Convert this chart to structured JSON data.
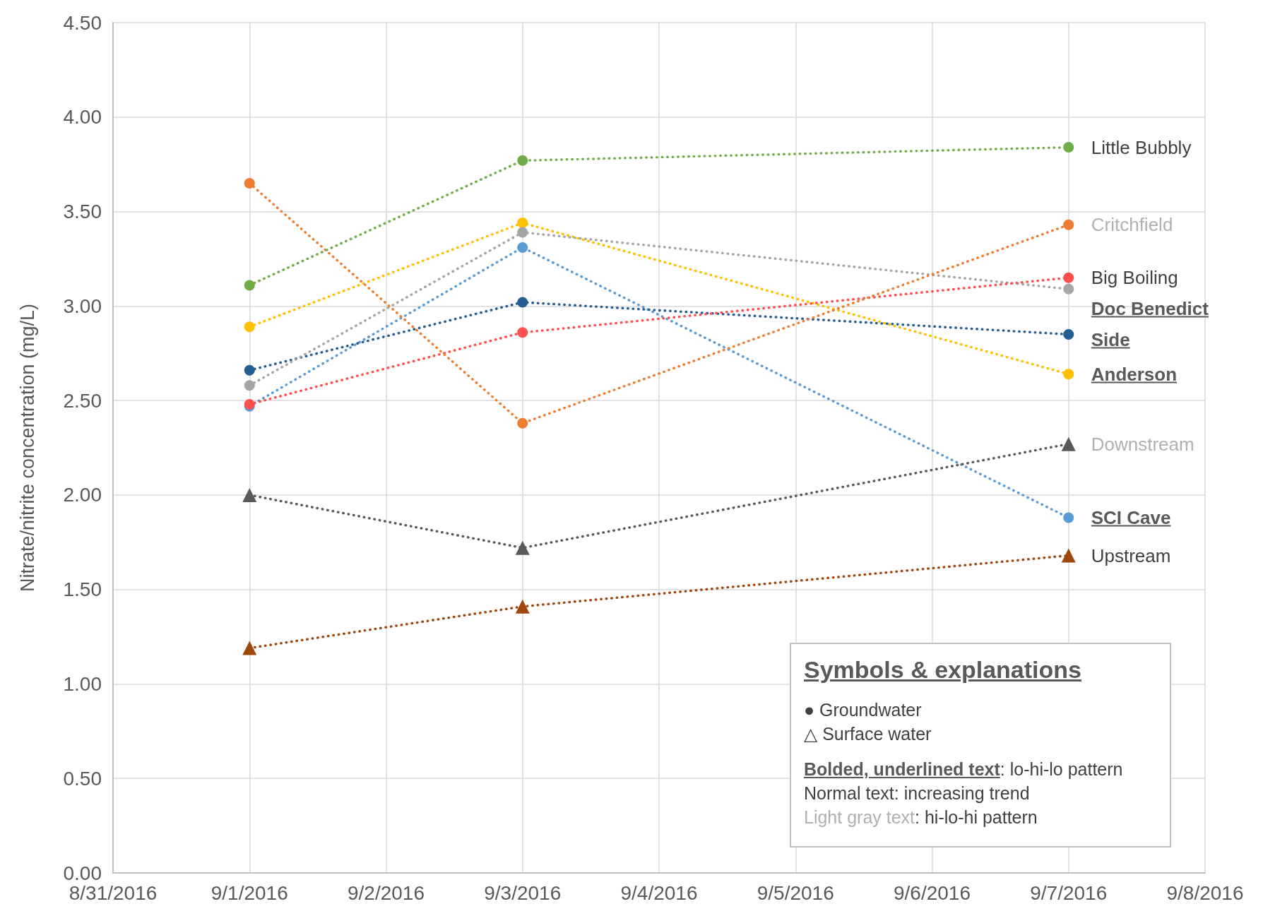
{
  "chart_data": {
    "type": "line",
    "ylabel": "Nitrate/nitrite concentration (mg/L)",
    "x": [
      "2016-09-01",
      "2016-09-03",
      "2016-09-07"
    ],
    "xlim": [
      "2016-08-31",
      "2016-09-08"
    ],
    "xticks": [
      {
        "value": "2016-08-31",
        "label": "8/31/2016"
      },
      {
        "value": "2016-09-01",
        "label": "9/1/2016"
      },
      {
        "value": "2016-09-02",
        "label": "9/2/2016"
      },
      {
        "value": "2016-09-03",
        "label": "9/3/2016"
      },
      {
        "value": "2016-09-04",
        "label": "9/4/2016"
      },
      {
        "value": "2016-09-05",
        "label": "9/5/2016"
      },
      {
        "value": "2016-09-06",
        "label": "9/6/2016"
      },
      {
        "value": "2016-09-07",
        "label": "9/7/2016"
      },
      {
        "value": "2016-09-08",
        "label": "9/8/2016"
      }
    ],
    "ylim": [
      0,
      4.5
    ],
    "yticks": [
      {
        "value": 0,
        "label": "0.00"
      },
      {
        "value": 0.5,
        "label": "0.50"
      },
      {
        "value": 1,
        "label": "1.00"
      },
      {
        "value": 1.5,
        "label": "1.50"
      },
      {
        "value": 2,
        "label": "2.00"
      },
      {
        "value": 2.5,
        "label": "2.50"
      },
      {
        "value": 3,
        "label": "3.00"
      },
      {
        "value": 3.5,
        "label": "3.50"
      },
      {
        "value": 4,
        "label": "4.00"
      },
      {
        "value": 4.5,
        "label": "4.50"
      }
    ],
    "grid": true,
    "legend": false,
    "line_style": "dotted",
    "marker": "circle",
    "series": [
      {
        "name": "Little Bubbly",
        "color": "#70ad47",
        "values": [
          3.11,
          3.77,
          3.84
        ]
      },
      {
        "name": "Critchfield",
        "color": "#ed7d31",
        "values": [
          3.65,
          2.38,
          3.43
        ]
      },
      {
        "name": "Big Boiling",
        "color": "#ff5050",
        "values": [
          2.48,
          2.86,
          3.15
        ]
      },
      {
        "name": "Doc Benedict",
        "color": "#a5a5a5",
        "values": [
          2.58,
          3.39,
          3.09
        ]
      },
      {
        "name": "Side",
        "color": "#255e91",
        "values": [
          2.66,
          3.02,
          2.85
        ]
      },
      {
        "name": "Anderson",
        "color": "#ffc000",
        "values": [
          2.89,
          3.44,
          2.64
        ]
      },
      {
        "name": "Downstream",
        "color": "#595959",
        "values": [
          2.0,
          1.72,
          2.27
        ],
        "marker": "triangle"
      },
      {
        "name": "SCI Cave",
        "color": "#5b9bd5",
        "values": [
          2.47,
          3.31,
          1.88
        ]
      },
      {
        "name": "Upstream",
        "color": "#9e480e",
        "values": [
          1.19,
          1.41,
          1.68
        ],
        "marker": "triangle"
      }
    ],
    "annotations": [
      "Symbols & explanations",
      "● Groundwater",
      "△ Surface water",
      "Bolded, underlined text: lo-hi-lo pattern",
      "Normal text: increasing trend",
      "Light gray text: hi-lo-hi pattern"
    ]
  }
}
